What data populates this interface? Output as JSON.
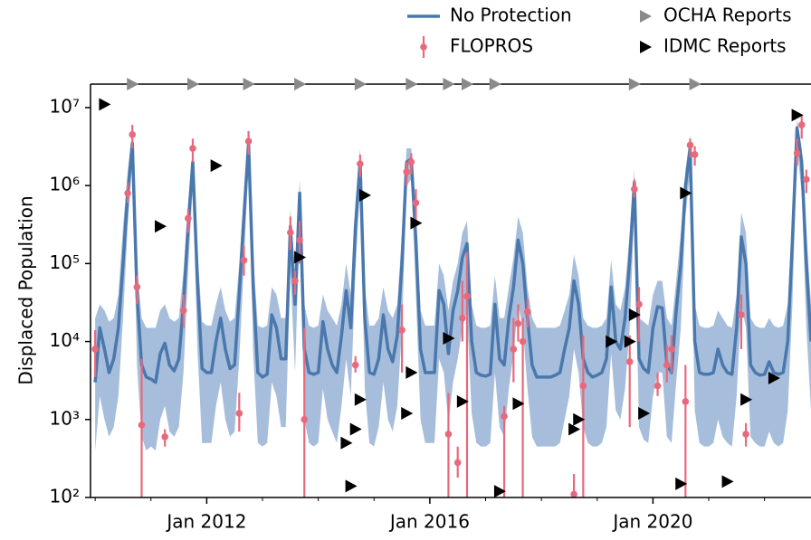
{
  "chart_data": {
    "type": "line",
    "ylabel": "Displaced Population",
    "log_y": true,
    "legend": "top",
    "xlim": [
      "2009-12",
      "2022-11"
    ],
    "ylim": [
      100,
      20000000
    ],
    "xticks": [
      {
        "value": "2012-01",
        "label": "Jan 2012"
      },
      {
        "value": "2016-01",
        "label": "Jan 2016"
      },
      {
        "value": "2020-01",
        "label": "Jan 2020"
      }
    ],
    "xminorticks": [
      "2010-01",
      "2011-01",
      "2013-01",
      "2014-01",
      "2015-01",
      "2017-01",
      "2018-01",
      "2019-01",
      "2021-01",
      "2022-01"
    ],
    "yticks": [
      {
        "value": 100,
        "label": "10²"
      },
      {
        "value": 1000,
        "label": "10³"
      },
      {
        "value": 10000,
        "label": "10⁴"
      },
      {
        "value": 100000,
        "label": "10⁵"
      },
      {
        "value": 1000000,
        "label": "10⁶"
      },
      {
        "value": 10000000,
        "label": "10⁷"
      }
    ],
    "series": [
      {
        "name": "No Protection",
        "type": "line",
        "color": "#4a78ad",
        "band_color": "#a6bedb",
        "x": [
          "2010-01",
          "2010-02",
          "2010-03",
          "2010-04",
          "2010-05",
          "2010-06",
          "2010-07",
          "2010-08",
          "2010-09",
          "2010-10",
          "2010-11",
          "2010-12",
          "2011-01",
          "2011-02",
          "2011-03",
          "2011-04",
          "2011-05",
          "2011-06",
          "2011-07",
          "2011-08",
          "2011-09",
          "2011-10",
          "2011-11",
          "2011-12",
          "2012-01",
          "2012-02",
          "2012-03",
          "2012-04",
          "2012-05",
          "2012-06",
          "2012-07",
          "2012-08",
          "2012-09",
          "2012-10",
          "2012-11",
          "2012-12",
          "2013-01",
          "2013-02",
          "2013-03",
          "2013-04",
          "2013-05",
          "2013-06",
          "2013-07",
          "2013-08",
          "2013-09",
          "2013-10",
          "2013-11",
          "2013-12",
          "2014-01",
          "2014-02",
          "2014-03",
          "2014-04",
          "2014-05",
          "2014-06",
          "2014-07",
          "2014-08",
          "2014-09",
          "2014-10",
          "2014-11",
          "2014-12",
          "2015-01",
          "2015-02",
          "2015-03",
          "2015-04",
          "2015-05",
          "2015-06",
          "2015-07",
          "2015-08",
          "2015-09",
          "2015-10",
          "2015-11",
          "2015-12",
          "2016-01",
          "2016-02",
          "2016-03",
          "2016-04",
          "2016-05",
          "2016-06",
          "2016-07",
          "2016-08",
          "2016-09",
          "2016-10",
          "2016-11",
          "2016-12",
          "2017-01",
          "2017-02",
          "2017-03",
          "2017-04",
          "2017-05",
          "2017-06",
          "2017-07",
          "2017-08",
          "2017-09",
          "2017-10",
          "2017-11",
          "2017-12",
          "2018-01",
          "2018-02",
          "2018-03",
          "2018-04",
          "2018-05",
          "2018-06",
          "2018-07",
          "2018-08",
          "2018-09",
          "2018-10",
          "2018-11",
          "2018-12",
          "2019-01",
          "2019-02",
          "2019-03",
          "2019-04",
          "2019-05",
          "2019-06",
          "2019-07",
          "2019-08",
          "2019-09",
          "2019-10",
          "2019-11",
          "2019-12",
          "2020-01",
          "2020-02",
          "2020-03",
          "2020-04",
          "2020-05",
          "2020-06",
          "2020-07",
          "2020-08",
          "2020-09",
          "2020-10",
          "2020-11",
          "2020-12",
          "2021-01",
          "2021-02",
          "2021-03",
          "2021-04",
          "2021-05",
          "2021-06",
          "2021-07",
          "2021-08",
          "2021-09",
          "2021-10",
          "2021-11",
          "2021-12",
          "2022-01",
          "2022-02",
          "2022-03",
          "2022-04",
          "2022-05",
          "2022-06",
          "2022-07",
          "2022-08",
          "2022-09",
          "2022-10",
          "2022-11"
        ],
        "values": [
          3000,
          15000,
          8000,
          4000,
          6000,
          15000,
          100000,
          800000,
          3500000,
          40000,
          5000,
          3500,
          3300,
          3000,
          7000,
          9500,
          5000,
          4200,
          6000,
          30000,
          300000,
          2000000,
          60000,
          4500,
          4000,
          4000,
          10000,
          20000,
          8000,
          4500,
          5000,
          40000,
          400000,
          3500000,
          50000,
          4000,
          3500,
          3800,
          22000,
          15000,
          6000,
          6000,
          300000,
          30000,
          800000,
          8000,
          4000,
          3800,
          4000,
          18000,
          8000,
          5000,
          4000,
          12000,
          45000,
          15000,
          300000,
          2000000,
          20000,
          4000,
          3800,
          6000,
          22000,
          8000,
          5500,
          12000,
          100000,
          2000000,
          2200000,
          200000,
          8000,
          4000,
          4000,
          4000,
          45000,
          30000,
          7000,
          25000,
          45000,
          120000,
          180000,
          10000,
          4000,
          3700,
          3600,
          3800,
          30000,
          6000,
          5000,
          20000,
          50000,
          200000,
          100000,
          20000,
          5000,
          3500,
          3500,
          3500,
          3500,
          3700,
          4000,
          8000,
          15000,
          60000,
          30000,
          6000,
          4000,
          3500,
          3700,
          4000,
          6000,
          50000,
          10000,
          8000,
          20000,
          110000,
          1100000,
          6000,
          4500,
          4000,
          15000,
          28000,
          27000,
          5000,
          4000,
          25000,
          100000,
          1000000,
          3000000,
          10000,
          4000,
          3800,
          3800,
          4000,
          8000,
          5000,
          4000,
          3800,
          15000,
          220000,
          100000,
          5000,
          4000,
          3700,
          3800,
          5500,
          4000,
          3800,
          4000,
          10000,
          200000,
          5500000,
          2000000,
          100000,
          10000
        ],
        "upper": [
          20000,
          30000,
          25000,
          18000,
          20000,
          40000,
          300000,
          1500000,
          5000000,
          100000,
          20000,
          15000,
          15000,
          15000,
          25000,
          30000,
          20000,
          18000,
          20000,
          80000,
          600000,
          3000000,
          150000,
          18000,
          16000,
          16000,
          30000,
          50000,
          25000,
          18000,
          20000,
          100000,
          800000,
          5000000,
          120000,
          16000,
          15000,
          16000,
          50000,
          40000,
          20000,
          20000,
          500000,
          80000,
          1200000,
          30000,
          16000,
          15000,
          16000,
          40000,
          25000,
          20000,
          16000,
          30000,
          100000,
          40000,
          600000,
          3000000,
          50000,
          16000,
          16000,
          20000,
          50000,
          25000,
          20000,
          30000,
          250000,
          3000000,
          3000000,
          400000,
          25000,
          16000,
          16000,
          16000,
          100000,
          70000,
          25000,
          60000,
          100000,
          250000,
          350000,
          30000,
          16000,
          15000,
          15000,
          16000,
          70000,
          20000,
          20000,
          50000,
          120000,
          400000,
          250000,
          50000,
          20000,
          15000,
          15000,
          15000,
          15000,
          15000,
          16000,
          25000,
          40000,
          130000,
          70000,
          20000,
          16000,
          15000,
          15000,
          16000,
          20000,
          110000,
          30000,
          25000,
          50000,
          250000,
          1600000,
          20000,
          18000,
          16000,
          40000,
          60000,
          60000,
          20000,
          16000,
          60000,
          250000,
          1600000,
          4500000,
          30000,
          16000,
          15000,
          15000,
          16000,
          25000,
          20000,
          16000,
          15000,
          40000,
          450000,
          250000,
          20000,
          16000,
          15000,
          15000,
          20000,
          16000,
          15000,
          16000,
          30000,
          450000,
          7000000,
          3000000,
          250000,
          30000
        ],
        "lower": [
          400,
          2000,
          1000,
          600,
          800,
          2000,
          20000,
          300000,
          2000000,
          5000,
          600,
          400,
          450,
          400,
          1000,
          1500,
          700,
          600,
          800,
          4000,
          80000,
          1000000,
          8000,
          500,
          500,
          500,
          1500,
          3000,
          1000,
          600,
          700,
          6000,
          100000,
          2000000,
          7000,
          500,
          450,
          500,
          3000,
          2000,
          800,
          800,
          80000,
          4000,
          300000,
          1000,
          500,
          450,
          500,
          2500,
          1000,
          700,
          500,
          1500,
          6000,
          2000,
          80000,
          1000000,
          2500,
          500,
          450,
          800,
          3000,
          1000,
          700,
          1500,
          15000,
          1000000,
          1200000,
          40000,
          1000,
          500,
          500,
          500,
          6000,
          4000,
          900,
          3000,
          6000,
          15000,
          25000,
          1200,
          500,
          450,
          450,
          500,
          4000,
          800,
          600,
          2500,
          7000,
          30000,
          15000,
          2500,
          600,
          450,
          450,
          450,
          450,
          450,
          500,
          1000,
          2000,
          8000,
          4000,
          800,
          500,
          450,
          450,
          500,
          800,
          7000,
          1300,
          1000,
          2500,
          15000,
          500000,
          800,
          550,
          500,
          2000,
          4000,
          4000,
          600,
          500,
          3000,
          15000,
          400000,
          1500000,
          1300,
          500,
          450,
          450,
          500,
          1000,
          600,
          500,
          450,
          2000,
          30000,
          15000,
          600,
          500,
          450,
          450,
          700,
          500,
          450,
          500,
          1300,
          30000,
          3000000,
          800000,
          15000,
          1300
        ]
      },
      {
        "name": "FLOPROS",
        "type": "errorbar",
        "color": "#e8697c",
        "x": [
          "2010-01",
          "2010-08",
          "2010-09",
          "2010-10",
          "2010-11",
          "2011-04",
          "2011-08",
          "2011-09",
          "2011-10",
          "2012-08",
          "2012-09",
          "2012-10",
          "2013-07",
          "2013-08",
          "2013-09",
          "2013-10",
          "2014-09",
          "2014-10",
          "2015-07",
          "2015-08",
          "2015-09",
          "2015-10",
          "2016-05",
          "2016-07",
          "2016-08",
          "2016-09",
          "2017-05",
          "2017-07",
          "2017-08",
          "2017-09",
          "2017-10",
          "2018-08",
          "2018-10",
          "2019-08",
          "2019-09",
          "2019-10",
          "2020-02",
          "2020-04",
          "2020-05",
          "2020-08",
          "2020-09",
          "2020-10",
          "2021-08",
          "2021-09",
          "2022-08",
          "2022-09",
          "2022-10"
        ],
        "values": [
          8000,
          800000,
          4500000,
          50000,
          850,
          600,
          25000,
          380000,
          3000000,
          1200,
          110000,
          3700000,
          250000,
          60000,
          200000,
          1000,
          5000,
          1900000,
          14000,
          1500000,
          2000000,
          600000,
          650,
          280,
          20000,
          38000,
          1100,
          8000,
          17000,
          10000,
          24000,
          110,
          2700,
          5500,
          900000,
          30000,
          2700,
          5000,
          8000,
          1700,
          3300000,
          2500000,
          22000,
          650,
          2600000,
          6000000,
          1200000
        ],
        "lower": [
          3500,
          600000,
          3000000,
          30000,
          50,
          450,
          15000,
          250000,
          2000000,
          700,
          70000,
          2500000,
          150000,
          40000,
          100000,
          30,
          4000,
          1300000,
          4000,
          1000000,
          1400000,
          350000,
          80,
          180,
          10000,
          50,
          60,
          3000,
          10000,
          50,
          15000,
          50,
          50,
          800,
          700000,
          10000,
          2000,
          3000,
          4000,
          60,
          2300000,
          1800000,
          8000,
          450,
          1800000,
          4000000,
          800000
        ],
        "upper": [
          14000,
          1100000,
          6000000,
          70000,
          6000,
          750,
          40000,
          500000,
          4000000,
          2200,
          170000,
          5000000,
          400000,
          80000,
          350000,
          15000,
          6500,
          2500000,
          30000,
          2000000,
          2600000,
          900000,
          2200,
          450,
          60000,
          140000,
          1500,
          20000,
          30000,
          20000,
          35000,
          200,
          12000,
          12000,
          1200000,
          50000,
          4000,
          9000,
          12000,
          5000,
          4000000,
          3200000,
          40000,
          900,
          4000000,
          8000000,
          1600000
        ]
      },
      {
        "name": "OCHA Reports",
        "type": "marker-top",
        "color": "#8a8a8a",
        "x": [
          "2010-09",
          "2011-10",
          "2012-10",
          "2013-09",
          "2014-10",
          "2015-09",
          "2016-05",
          "2016-09",
          "2017-03",
          "2019-09",
          "2020-10"
        ]
      },
      {
        "name": "IDMC Reports",
        "type": "scatter",
        "color": "#000000",
        "x": [
          "2010-03",
          "2011-03",
          "2012-03",
          "2013-09",
          "2014-07",
          "2014-08",
          "2014-09",
          "2014-10",
          "2014-11",
          "2015-08",
          "2015-09",
          "2015-10",
          "2016-05",
          "2016-08",
          "2017-04",
          "2017-08",
          "2018-08",
          "2018-09",
          "2019-04",
          "2019-08",
          "2019-09",
          "2019-11",
          "2020-07",
          "2020-08",
          "2021-05",
          "2021-09",
          "2022-03",
          "2022-08"
        ],
        "values": [
          11000000,
          300000,
          1800000,
          120000,
          500,
          140,
          750,
          1800,
          750000,
          1200,
          4000,
          330000,
          11000,
          1700,
          120,
          1600,
          750,
          1000,
          10000,
          10000,
          22000,
          1200,
          150,
          800000,
          160,
          1800,
          3400,
          8000000
        ]
      }
    ]
  }
}
